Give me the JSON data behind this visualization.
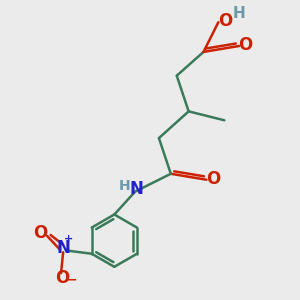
{
  "bg_color": "#ebebeb",
  "bond_color": "#3a7a5a",
  "o_color": "#cc2200",
  "h_color": "#6a9aaa",
  "n_color": "#2222cc",
  "line_width": 1.8,
  "font_size": 11,
  "fig_size": [
    3.0,
    3.0
  ],
  "dpi": 100,
  "xlim": [
    0,
    10
  ],
  "ylim": [
    0,
    10
  ]
}
